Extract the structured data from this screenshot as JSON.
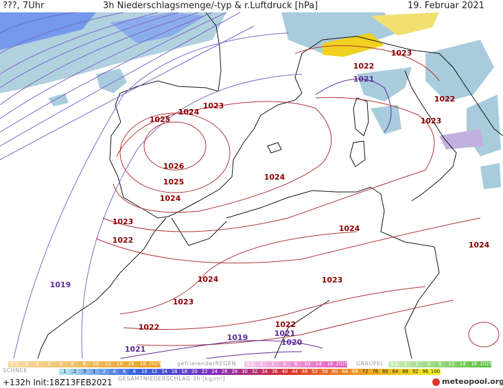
{
  "header": {
    "left": "???, 7Uhr",
    "title": "3h Niederschlagsmenge/-typ & r.Luftdruck [hPa]",
    "date": "19. Februar 2021"
  },
  "isobar_labels": [
    {
      "value": "1026",
      "color": "#8b0000"
    },
    {
      "value": "1025",
      "color": "#8b0000"
    },
    {
      "value": "1025",
      "color": "#8b0000"
    },
    {
      "value": "1024",
      "color": "#8b0000"
    },
    {
      "value": "1024",
      "color": "#8b0000"
    },
    {
      "value": "1024",
      "color": "#8b0000"
    },
    {
      "value": "1024",
      "color": "#8b0000"
    },
    {
      "value": "1024",
      "color": "#8b0000"
    },
    {
      "value": "1024",
      "color": "#8b0000"
    },
    {
      "value": "1023",
      "color": "#8b0000"
    },
    {
      "value": "1023",
      "color": "#8b0000"
    },
    {
      "value": "1023",
      "color": "#8b0000"
    },
    {
      "value": "1023",
      "color": "#8b0000"
    },
    {
      "value": "1023",
      "color": "#8b0000"
    },
    {
      "value": "1023",
      "color": "#8b0000"
    },
    {
      "value": "1022",
      "color": "#8b0000"
    },
    {
      "value": "1022",
      "color": "#8b0000"
    },
    {
      "value": "1022",
      "color": "#8b0000"
    },
    {
      "value": "1022",
      "color": "#8b0000"
    },
    {
      "value": "1022",
      "color": "#8b0000"
    },
    {
      "value": "1021",
      "color": "#5a2a9a"
    },
    {
      "value": "1021",
      "color": "#5a2a9a"
    },
    {
      "value": "1021",
      "color": "#5a2a9a"
    },
    {
      "value": "1020",
      "color": "#5a2a9a"
    },
    {
      "value": "1019",
      "color": "#5a2a9a"
    },
    {
      "value": "1019",
      "color": "#5a2a9a"
    }
  ],
  "legend": {
    "schnee_label": "SCHNEE",
    "schnee_scale": [
      "0.1",
      ".5",
      "1",
      "2",
      "4",
      "6",
      "8",
      "10",
      "12",
      "14",
      "16",
      "18",
      "2025+"
    ],
    "regen_label": "gefrierenderREGEN",
    "regen_scale": [
      "0.1",
      "1",
      "2",
      "4",
      "8",
      "10",
      "14",
      "16",
      "2025+"
    ],
    "graupel_label": "GRAUPEL",
    "graupel_scale": [
      "0.1",
      "1",
      "2",
      "4",
      "8",
      "10",
      "14",
      "16",
      "2025+"
    ],
    "gesamt_label": "GESAMTNIEDERSCHLAG 3h [kg/m²]",
    "gesamt_scale": [
      ".1",
      ".2",
      ".5",
      "1",
      "2",
      "4",
      "6",
      "8",
      "10",
      "12",
      "14",
      "16",
      "18",
      "20",
      "22",
      "24",
      "26",
      "28",
      "30",
      "32",
      "34",
      "36",
      "40",
      "44",
      "48",
      "52",
      "56",
      "60",
      "64",
      "68",
      "72",
      "76",
      "80",
      "84",
      "88",
      "92",
      "96",
      "100"
    ],
    "colors": {
      "schnee": "#e8a020",
      "regen": "#e060c0",
      "graupel": "#60c040",
      "gesamt_start": "#b0e0f0",
      "gesamt_end": "#f0f020"
    }
  },
  "footer": {
    "run": "+132h Init:18Z13FEB2021",
    "brand": "meteopool.org"
  }
}
